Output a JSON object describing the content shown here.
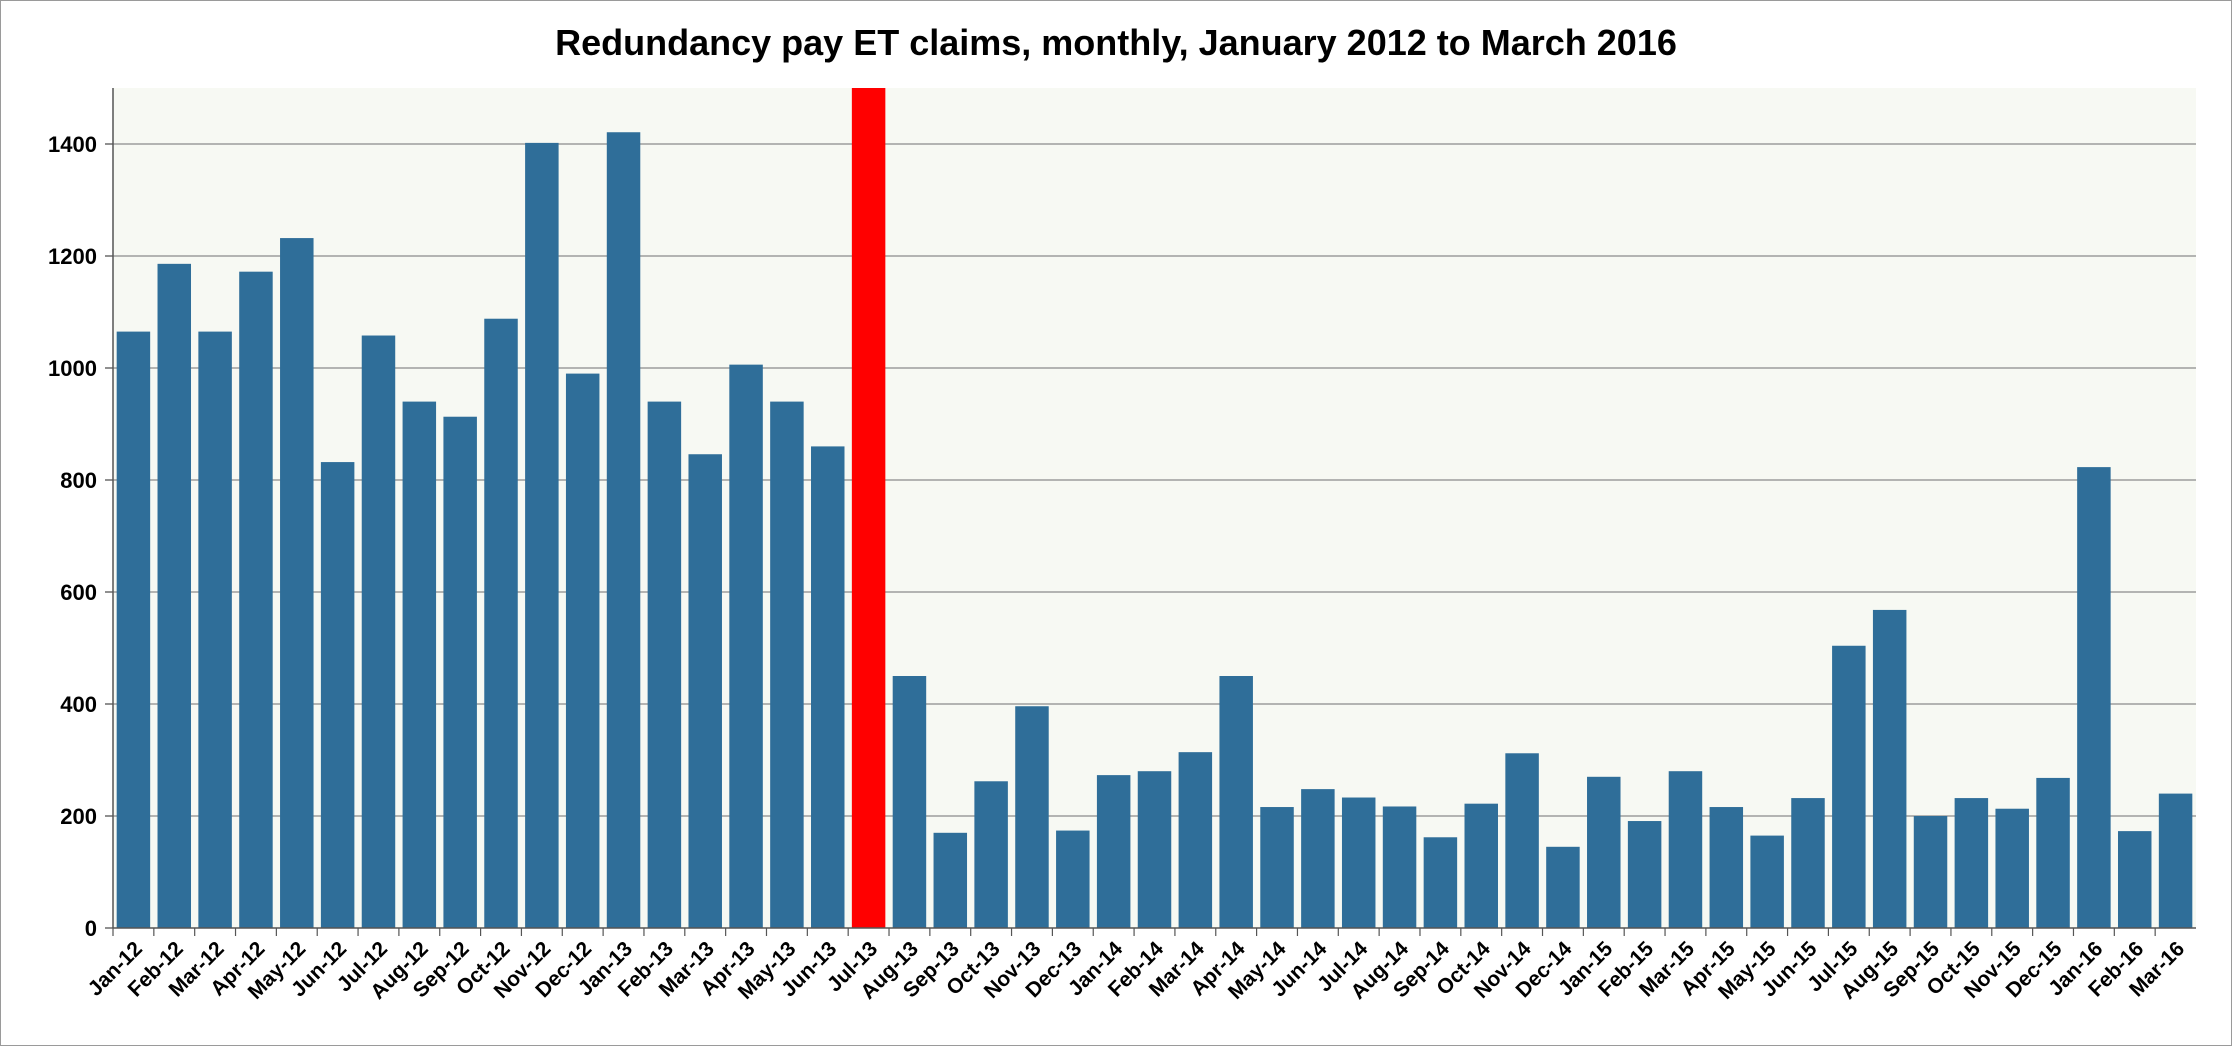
{
  "chart_data": {
    "type": "bar",
    "title": "Redundancy pay ET claims, monthly, January 2012 to March 2016",
    "xlabel": "",
    "ylabel": "",
    "ylim": [
      0,
      1500
    ],
    "yticks": [
      0,
      200,
      400,
      600,
      800,
      1000,
      1200,
      1400
    ],
    "grid": true,
    "legend": "none",
    "colors": {
      "bar": "#2f6e99",
      "highlight": "#ff0000",
      "plot_bg": "#f7f9f3",
      "grid": "#8a8a8a"
    },
    "highlight_category": "Jul-13",
    "categories": [
      "Jan-12",
      "Feb-12",
      "Mar-12",
      "Apr-12",
      "May-12",
      "Jun-12",
      "Jul-12",
      "Aug-12",
      "Sep-12",
      "Oct-12",
      "Nov-12",
      "Dec-12",
      "Jan-13",
      "Feb-13",
      "Mar-13",
      "Apr-13",
      "May-13",
      "Jun-13",
      "Jul-13",
      "Aug-13",
      "Sep-13",
      "Oct-13",
      "Nov-13",
      "Dec-13",
      "Jan-14",
      "Feb-14",
      "Mar-14",
      "Apr-14",
      "May-14",
      "Jun-14",
      "Jul-14",
      "Aug-14",
      "Sep-14",
      "Oct-14",
      "Nov-14",
      "Dec-14",
      "Jan-15",
      "Feb-15",
      "Mar-15",
      "Apr-15",
      "May-15",
      "Jun-15",
      "Jul-15",
      "Aug-15",
      "Sep-15",
      "Oct-15",
      "Nov-15",
      "Dec-15",
      "Jan-16",
      "Feb-16",
      "Mar-16"
    ],
    "values": [
      1065,
      1186,
      1065,
      1172,
      1232,
      832,
      1058,
      940,
      913,
      1088,
      1402,
      990,
      1421,
      940,
      846,
      1006,
      940,
      860,
      1500,
      450,
      170,
      262,
      396,
      174,
      273,
      280,
      314,
      450,
      216,
      248,
      233,
      217,
      162,
      222,
      312,
      145,
      270,
      191,
      280,
      216,
      165,
      232,
      504,
      568,
      200,
      232,
      213,
      268,
      823,
      173,
      240
    ]
  }
}
